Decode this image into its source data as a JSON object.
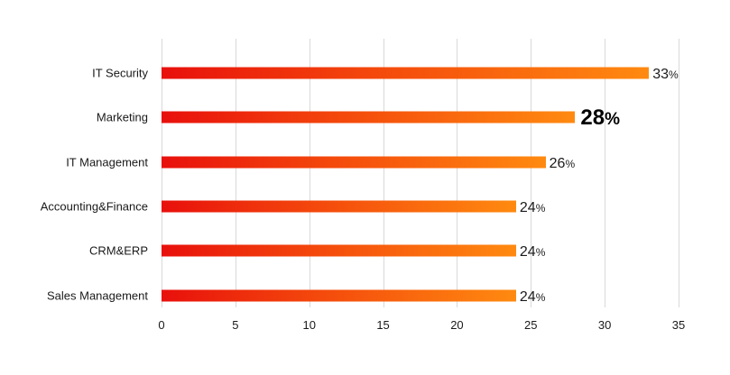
{
  "chart_data": {
    "type": "bar",
    "orientation": "horizontal",
    "title": "",
    "xlabel": "",
    "ylabel": "",
    "categories": [
      "IT Security",
      "Marketing",
      "IT Management",
      "Accounting&Finance",
      "CRM&ERP",
      "Sales Management"
    ],
    "values": [
      33,
      28,
      26,
      24,
      24,
      24
    ],
    "value_labels": [
      "33%",
      "28%",
      "26%",
      "24%",
      "24%",
      "24%"
    ],
    "highlighted": "Marketing",
    "xlim": [
      0,
      35
    ],
    "x_ticks": [
      0,
      5,
      10,
      15,
      20,
      25,
      30,
      35
    ],
    "grid": true,
    "legend": null,
    "bar_gradient": {
      "start": "#e8100c",
      "end": "#ff8a10"
    }
  }
}
